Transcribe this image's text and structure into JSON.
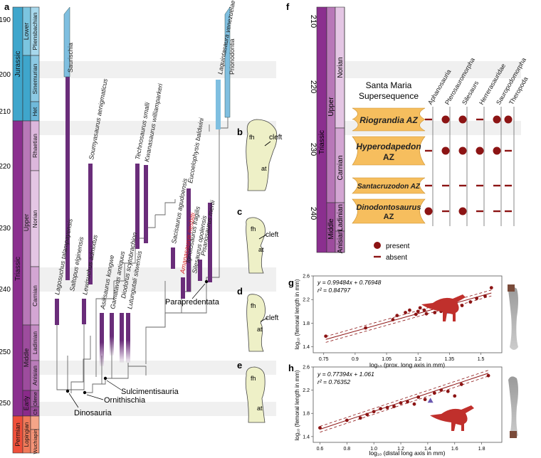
{
  "panel_letters": {
    "a": "a",
    "b": "b",
    "c": "c",
    "d": "d",
    "e": "e",
    "f": "f",
    "g": "g",
    "h": "h"
  },
  "timescale": {
    "ticks": [
      "190",
      "200",
      "210",
      "220",
      "230",
      "240",
      "250"
    ],
    "periods": [
      "Jurassic",
      "Triassic",
      "Permian"
    ],
    "epochs": [
      "Lower",
      "Upper",
      "Middle",
      "Early",
      "Lopingian"
    ],
    "stages": [
      "Pliensbachian",
      "Sinemurian",
      "Het",
      "Rhaetian",
      "Norian",
      "Carnian",
      "Ladinian",
      "Anisian",
      "Olene",
      "Ch",
      "Wuchiapin"
    ]
  },
  "taxa": [
    "Lagosuchus talampayensis",
    "Saltopus elginensis",
    "Lewisuchus admixtus",
    "Soumyasaurus aenigmaticus",
    "Asilisaurus kongwe",
    "Gamatavus antiquus",
    "Diodorus scytobrachion",
    "Lutungutali sitwensis",
    "Technosaurus smalli",
    "Kwanasaurus williamparkeri",
    "Sacisaurus agudoensis",
    "Amanasaurus nesbitti",
    "Ignotosaurus fragilis",
    "Silesaurus opolensis",
    "Eucoelophysis baldwini",
    "Pisanosaurus mertii",
    "Laquintasaura venezuelae",
    "Saurischia",
    "Prionodontia"
  ],
  "clades": [
    "Dinosauria",
    "Ornithischia",
    "Sulcimentisauria",
    "Parapredentata"
  ],
  "femur_labels": {
    "fh": "fh",
    "at": "at",
    "cleft": "cleft"
  },
  "panel_f": {
    "ticks": [
      "210",
      "220",
      "230",
      "240"
    ],
    "period": "Triassic",
    "epochs": [
      "Upper",
      "Middle"
    ],
    "stages": [
      "Norian",
      "Carnian",
      "Ladinian",
      "Anisian"
    ],
    "title_line1": "Santa Maria",
    "title_line2": "Supersequence",
    "columns": [
      "Aphanosauria",
      "Pterosauromorpha",
      "Silesaurs",
      "Herrerasauridae",
      "Sauropodomorpha",
      "Theropoda"
    ],
    "zones": [
      {
        "line1": "Riograndia AZ",
        "line2": "",
        "marks": [
          "absent",
          "present",
          "present",
          "absent",
          "present",
          "present"
        ]
      },
      {
        "line1": "Hyperodapedon",
        "line2": "AZ",
        "marks": [
          "absent",
          "present",
          "present",
          "present",
          "present",
          "absent"
        ]
      },
      {
        "line1": "Santacruzodon AZ",
        "line2": "",
        "marks": [
          "absent",
          "absent",
          "absent",
          "absent",
          "absent",
          "absent"
        ]
      },
      {
        "line1": "Dinodontosaurus",
        "line2": "AZ",
        "marks": [
          "present",
          "absent",
          "present",
          "absent",
          "absent",
          "absent"
        ]
      }
    ],
    "legend_present": "present",
    "legend_absent": "absent"
  },
  "chart_data": [
    {
      "type": "scatter",
      "panel": "g",
      "equation": "y = 0.99484x + 0.76948",
      "r2": "r² = 0.84797",
      "xlabel": "log₁₀ (prox. long axis in mm)",
      "ylabel": "log₁₀ (femoral length in mm)",
      "xlim": [
        0.7,
        1.6
      ],
      "ylim": [
        1.3,
        2.6
      ],
      "xticks": [
        "0.75",
        "0.9",
        "1.05",
        "1.2",
        "1.35",
        "1.5"
      ],
      "yticks": [
        "1.4",
        "1.8",
        "2.2",
        "2.6"
      ],
      "fit": {
        "slope": 0.99484,
        "intercept": 0.76948
      },
      "points": [
        [
          0.76,
          1.58
        ],
        [
          0.95,
          1.72
        ],
        [
          1.08,
          1.86
        ],
        [
          1.1,
          1.93
        ],
        [
          1.14,
          1.98
        ],
        [
          1.16,
          2.02
        ],
        [
          1.19,
          1.95
        ],
        [
          1.2,
          2.0
        ],
        [
          1.21,
          2.06
        ],
        [
          1.23,
          2.02
        ],
        [
          1.24,
          1.96
        ],
        [
          1.26,
          2.1
        ],
        [
          1.28,
          1.98
        ],
        [
          1.3,
          2.05
        ],
        [
          1.31,
          2.0
        ],
        [
          1.33,
          2.12
        ],
        [
          1.35,
          2.08
        ],
        [
          1.38,
          2.14
        ],
        [
          1.41,
          2.1
        ],
        [
          1.45,
          2.16
        ],
        [
          1.48,
          2.22
        ],
        [
          1.52,
          2.26
        ],
        [
          1.55,
          2.4
        ]
      ],
      "highlight": [
        1.34,
        2.0
      ]
    },
    {
      "type": "scatter",
      "panel": "h",
      "equation": "y = 0.77394x + 1.061",
      "r2": "r² = 0.76352",
      "xlabel": "log₁₀ (distal long axis in mm)",
      "ylabel": "log₁₀ (femoral length in mm)",
      "xlim": [
        0.55,
        1.95
      ],
      "ylim": [
        1.3,
        2.6
      ],
      "xticks": [
        "0.6",
        "0.8",
        "1.0",
        "1.2",
        "1.4",
        "1.6",
        "1.8"
      ],
      "yticks": [
        "1.4",
        "1.8",
        "2.2",
        "2.6"
      ],
      "fit": {
        "slope": 0.77394,
        "intercept": 1.061
      },
      "points": [
        [
          0.6,
          1.55
        ],
        [
          0.8,
          1.68
        ],
        [
          0.9,
          1.72
        ],
        [
          0.95,
          1.78
        ],
        [
          1.0,
          1.83
        ],
        [
          1.05,
          1.88
        ],
        [
          1.1,
          1.9
        ],
        [
          1.15,
          1.92
        ],
        [
          1.2,
          1.98
        ],
        [
          1.25,
          2.0
        ],
        [
          1.3,
          1.96
        ],
        [
          1.33,
          2.08
        ],
        [
          1.38,
          2.04
        ],
        [
          1.45,
          2.15
        ],
        [
          1.5,
          2.2
        ],
        [
          1.55,
          2.18
        ],
        [
          1.6,
          2.1
        ],
        [
          1.65,
          2.3
        ],
        [
          1.85,
          2.45
        ]
      ],
      "highlight": [
        1.42,
        2.02
      ]
    }
  ],
  "colors": {
    "jurassic": "#3fa6cc",
    "triassic": "#8b2f8f",
    "permian": "#ef4f3a",
    "bar": "#6a2d7a",
    "zone": "#f6be5e",
    "dot": "#8c1414",
    "femur": "#eef0c7"
  }
}
